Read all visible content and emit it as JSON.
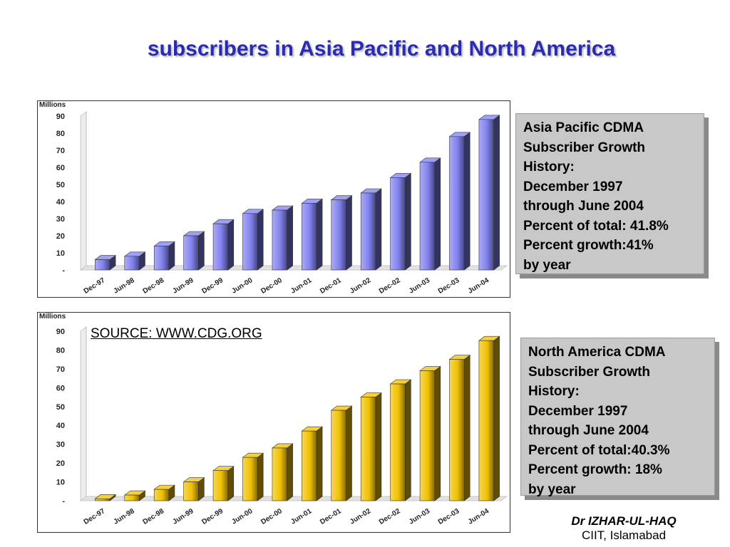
{
  "title": "subscribers in Asia Pacific and North America",
  "source": "SOURCE: WWW.CDG.ORG",
  "info_boxes": [
    {
      "lines": [
        "Asia Pacific CDMA",
        "Subscriber Growth",
        "History:",
        "December 1997",
        "through June 2004",
        "Percent of total: 41.8%",
        "Percent growth:41%",
        "by year"
      ]
    },
    {
      "lines": [
        "North America CDMA",
        "Subscriber Growth",
        "History:",
        "December 1997",
        "through June 2004",
        "Percent of total:40.3%",
        "Percent growth: 18%",
        "by year"
      ]
    }
  ],
  "author": {
    "name": "Dr IZHAR-UL-HAQ",
    "affiliation": "CIIT, Islamabad"
  },
  "chart_data": [
    {
      "type": "bar",
      "ylabel": "Millions",
      "ylim": [
        0,
        90
      ],
      "yticks": [
        "-",
        "10",
        "20",
        "30",
        "40",
        "50",
        "60",
        "70",
        "80",
        "90"
      ],
      "categories": [
        "Dec-97",
        "Jun-98",
        "Dec-98",
        "Jun-99",
        "Dec-99",
        "Jun-00",
        "Dec-00",
        "Jun-01",
        "Dec-01",
        "Jun-02",
        "Dec-02",
        "Jun-03",
        "Dec-03",
        "Jun-04"
      ],
      "values": [
        6,
        8,
        14,
        20,
        27,
        33,
        35,
        39,
        41,
        45,
        54,
        63,
        78,
        88
      ],
      "color": "#8080ee"
    },
    {
      "type": "bar",
      "ylabel": "Millions",
      "ylim": [
        0,
        90
      ],
      "yticks": [
        "-",
        "10",
        "20",
        "30",
        "40",
        "50",
        "60",
        "70",
        "80",
        "90"
      ],
      "categories": [
        "Dec-97",
        "Jun-98",
        "Dec-98",
        "Jun-99",
        "Dec-99",
        "Jun-00",
        "Dec-00",
        "Jun-01",
        "Dec-01",
        "Jun-02",
        "Dec-02",
        "Jun-03",
        "Dec-03",
        "Jun-04"
      ],
      "values": [
        1,
        3,
        6,
        10,
        16,
        23,
        28,
        37,
        48,
        55,
        62,
        69,
        75,
        85
      ],
      "color": "#f0c000"
    }
  ]
}
